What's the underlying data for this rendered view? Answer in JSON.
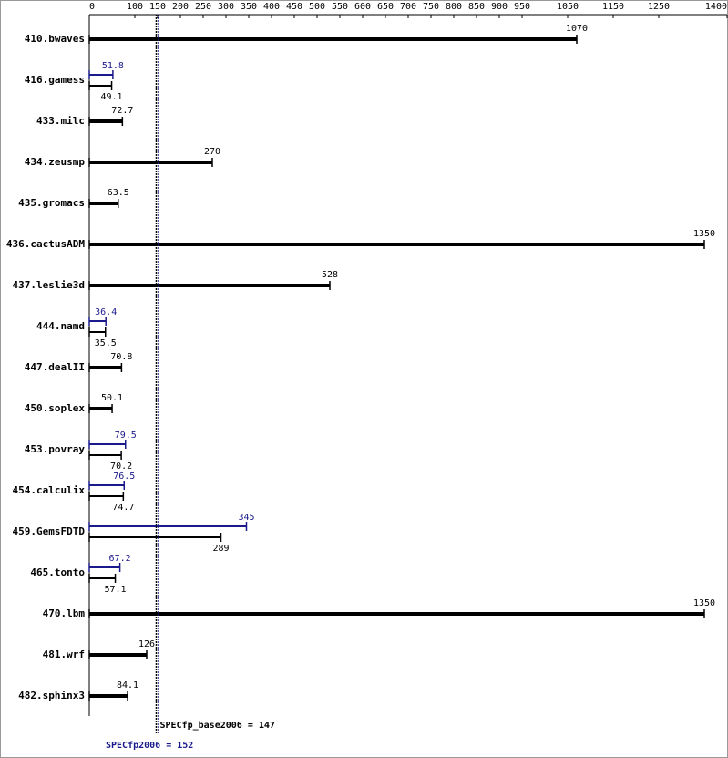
{
  "chart_data": {
    "type": "hbar",
    "categories": [
      "410.bwaves",
      "416.gamess",
      "433.milc",
      "434.zeusmp",
      "435.gromacs",
      "436.cactusADM",
      "437.leslie3d",
      "444.namd",
      "447.dealII",
      "450.soplex",
      "453.povray",
      "454.calculix",
      "459.GemsFDTD",
      "465.tonto",
      "470.lbm",
      "481.wrf",
      "482.sphinx3"
    ],
    "series": [
      {
        "color": "#000000",
        "values": [
          1070,
          49.1,
          72.7,
          270,
          63.5,
          1350,
          528,
          35.5,
          70.8,
          50.1,
          70.2,
          74.7,
          289,
          57.1,
          1350,
          126,
          84.1
        ]
      },
      {
        "color": "#1a1a8c",
        "values": [
          null,
          51.8,
          null,
          null,
          null,
          null,
          null,
          36.4,
          null,
          null,
          79.5,
          76.5,
          345,
          67.2,
          null,
          null,
          null
        ]
      }
    ],
    "xlim": [
      0,
      1400
    ],
    "xticks": [
      0,
      100,
      150,
      200,
      250,
      300,
      350,
      400,
      450,
      500,
      550,
      600,
      650,
      700,
      750,
      800,
      850,
      900,
      950,
      1050,
      1150,
      1250,
      1400
    ],
    "reference_lines": [
      {
        "label": "SPECfp_base2006 = 147",
        "value": 147,
        "color": "#000000"
      },
      {
        "label": "SPECfp2006 = 152",
        "value": 152,
        "color": "#1a1a8c"
      }
    ]
  }
}
